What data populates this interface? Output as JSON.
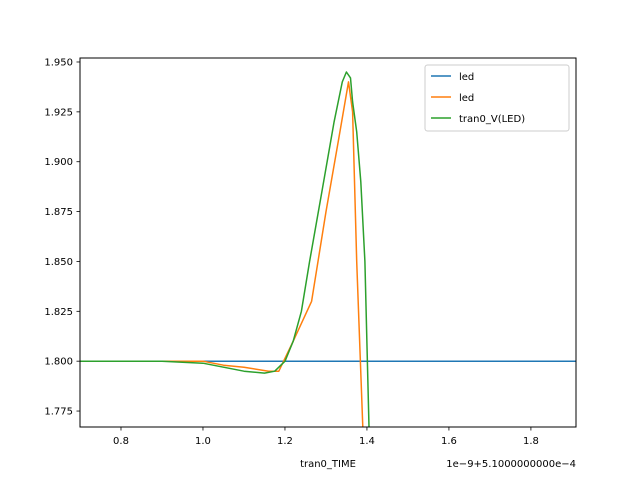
{
  "chart_data": {
    "type": "line",
    "title": "",
    "xlabel": "tran0_TIME",
    "ylabel": "",
    "x_offset_label": "1e−9+5.1000000000e−4",
    "xlim": [
      0.7,
      1.91
    ],
    "ylim": [
      1.767,
      1.952
    ],
    "xticks": [
      0.8,
      1.0,
      1.2,
      1.4,
      1.6,
      1.8
    ],
    "xtick_labels": [
      "0.8",
      "1.0",
      "1.2",
      "1.4",
      "1.6",
      "1.8"
    ],
    "yticks": [
      1.775,
      1.8,
      1.825,
      1.85,
      1.875,
      1.9,
      1.925,
      1.95
    ],
    "ytick_labels": [
      "1.775",
      "1.800",
      "1.825",
      "1.850",
      "1.875",
      "1.900",
      "1.925",
      "1.950"
    ],
    "grid": false,
    "legend_position": "top-right",
    "series": [
      {
        "name": "led",
        "color": "#1f77b4",
        "x": [
          0.7,
          1.91
        ],
        "y": [
          1.8,
          1.8
        ]
      },
      {
        "name": "led",
        "color": "#ff7f0e",
        "x": [
          0.7,
          0.8,
          0.9,
          1.0,
          1.05,
          1.1,
          1.16,
          1.185,
          1.22,
          1.265,
          1.3,
          1.33,
          1.355,
          1.365,
          1.375,
          1.39
        ],
        "y": [
          1.8,
          1.8,
          1.8,
          1.8,
          1.798,
          1.797,
          1.795,
          1.795,
          1.81,
          1.83,
          1.875,
          1.91,
          1.94,
          1.925,
          1.85,
          1.767
        ]
      },
      {
        "name": "tran0_V(LED)",
        "color": "#2ca02c",
        "x": [
          0.7,
          0.8,
          0.9,
          1.0,
          1.05,
          1.1,
          1.15,
          1.175,
          1.2,
          1.22,
          1.24,
          1.26,
          1.29,
          1.32,
          1.34,
          1.35,
          1.36,
          1.365,
          1.375,
          1.385,
          1.395,
          1.405
        ],
        "y": [
          1.8,
          1.8,
          1.8,
          1.799,
          1.797,
          1.795,
          1.794,
          1.795,
          1.8,
          1.81,
          1.825,
          1.85,
          1.885,
          1.92,
          1.94,
          1.945,
          1.942,
          1.93,
          1.915,
          1.89,
          1.85,
          1.767
        ]
      }
    ]
  }
}
